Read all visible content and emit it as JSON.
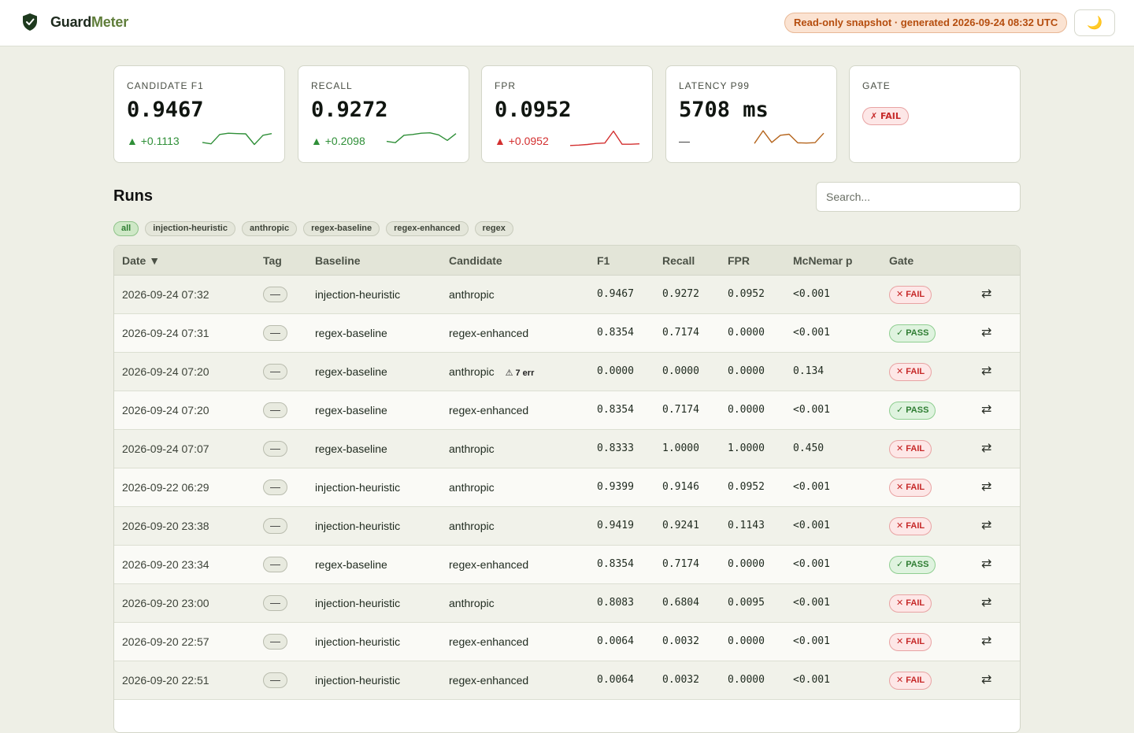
{
  "app": {
    "name_a": "Guard",
    "name_b": "Meter",
    "snapshot": "Read-only snapshot · generated 2026-09-24 08:32 UTC",
    "theme_icon": "🌙"
  },
  "cards": [
    {
      "label": "CANDIDATE F1",
      "value": "0.9467",
      "delta": "▲ +0.1113",
      "delta_type": "up",
      "color": "#2f8f38",
      "spark": [
        0.35,
        0.28,
        0.74,
        0.8,
        0.78,
        0.77,
        0.25,
        0.7,
        0.78
      ]
    },
    {
      "label": "RECALL",
      "value": "0.9272",
      "delta": "▲ +0.2098",
      "delta_type": "up",
      "color": "#2f8f38",
      "spark": [
        0.4,
        0.34,
        0.7,
        0.74,
        0.8,
        0.82,
        0.72,
        0.45,
        0.78
      ]
    },
    {
      "label": "FPR",
      "value": "0.0952",
      "delta": "▲ +0.0952",
      "delta_type": "bad",
      "color": "#d32f2f",
      "spark": [
        0.2,
        0.22,
        0.25,
        0.3,
        0.32,
        0.9,
        0.26,
        0.26,
        0.28
      ]
    },
    {
      "label": "LATENCY P99",
      "value": "5708 ms",
      "delta": "—",
      "delta_type": "none",
      "color": "#b5651d",
      "spark": [
        0.3,
        0.92,
        0.35,
        0.7,
        0.75,
        0.33,
        0.32,
        0.34,
        0.8
      ]
    },
    {
      "label": "GATE",
      "value": "",
      "badge": "✗ FAIL"
    }
  ],
  "runs": {
    "title": "Runs",
    "search_placeholder": "Search...",
    "chips": [
      "all",
      "injection-heuristic",
      "anthropic",
      "regex-baseline",
      "regex-enhanced",
      "regex"
    ],
    "columns": {
      "date": "Date ▼",
      "tag": "Tag",
      "baseline": "Baseline",
      "candidate": "Candidate",
      "f1": "F1",
      "recall": "Recall",
      "fpr": "FPR",
      "mcnemar": "McNemar p",
      "gate": "Gate"
    },
    "rows": [
      {
        "date": "2026-09-24 07:32",
        "tag": "—",
        "baseline": "injection-heuristic",
        "candidate": "anthropic",
        "err": "",
        "f1": "0.9467",
        "recall": "0.9272",
        "fpr": "0.0952",
        "p": "<0.001",
        "gate": "✕ FAIL",
        "pass": false
      },
      {
        "date": "2026-09-24 07:31",
        "tag": "—",
        "baseline": "regex-baseline",
        "candidate": "regex-enhanced",
        "err": "",
        "f1": "0.8354",
        "recall": "0.7174",
        "fpr": "0.0000",
        "p": "<0.001",
        "gate": "✓ PASS",
        "pass": true
      },
      {
        "date": "2026-09-24 07:20",
        "tag": "—",
        "baseline": "regex-baseline",
        "candidate": "anthropic",
        "err": "⚠ 7 err",
        "f1": "0.0000",
        "recall": "0.0000",
        "fpr": "0.0000",
        "p": "0.134",
        "gate": "✕ FAIL",
        "pass": false
      },
      {
        "date": "2026-09-24 07:20",
        "tag": "—",
        "baseline": "regex-baseline",
        "candidate": "regex-enhanced",
        "err": "",
        "f1": "0.8354",
        "recall": "0.7174",
        "fpr": "0.0000",
        "p": "<0.001",
        "gate": "✓ PASS",
        "pass": true
      },
      {
        "date": "2026-09-24 07:07",
        "tag": "—",
        "baseline": "regex-baseline",
        "candidate": "anthropic",
        "err": "",
        "f1": "0.8333",
        "recall": "1.0000",
        "fpr": "1.0000",
        "p": "0.450",
        "gate": "✕ FAIL",
        "pass": false
      },
      {
        "date": "2026-09-22 06:29",
        "tag": "—",
        "baseline": "injection-heuristic",
        "candidate": "anthropic",
        "err": "",
        "f1": "0.9399",
        "recall": "0.9146",
        "fpr": "0.0952",
        "p": "<0.001",
        "gate": "✕ FAIL",
        "pass": false
      },
      {
        "date": "2026-09-20 23:38",
        "tag": "—",
        "baseline": "injection-heuristic",
        "candidate": "anthropic",
        "err": "",
        "f1": "0.9419",
        "recall": "0.9241",
        "fpr": "0.1143",
        "p": "<0.001",
        "gate": "✕ FAIL",
        "pass": false
      },
      {
        "date": "2026-09-20 23:34",
        "tag": "—",
        "baseline": "regex-baseline",
        "candidate": "regex-enhanced",
        "err": "",
        "f1": "0.8354",
        "recall": "0.7174",
        "fpr": "0.0000",
        "p": "<0.001",
        "gate": "✓ PASS",
        "pass": true
      },
      {
        "date": "2026-09-20 23:00",
        "tag": "—",
        "baseline": "injection-heuristic",
        "candidate": "anthropic",
        "err": "",
        "f1": "0.8083",
        "recall": "0.6804",
        "fpr": "0.0095",
        "p": "<0.001",
        "gate": "✕ FAIL",
        "pass": false
      },
      {
        "date": "2026-09-20 22:57",
        "tag": "—",
        "baseline": "injection-heuristic",
        "candidate": "regex-enhanced",
        "err": "",
        "f1": "0.0064",
        "recall": "0.0032",
        "fpr": "0.0000",
        "p": "<0.001",
        "gate": "✕ FAIL",
        "pass": false
      },
      {
        "date": "2026-09-20 22:51",
        "tag": "—",
        "baseline": "injection-heuristic",
        "candidate": "regex-enhanced",
        "err": "",
        "f1": "0.0064",
        "recall": "0.0032",
        "fpr": "0.0000",
        "p": "<0.001",
        "gate": "✕ FAIL",
        "pass": false
      }
    ]
  }
}
